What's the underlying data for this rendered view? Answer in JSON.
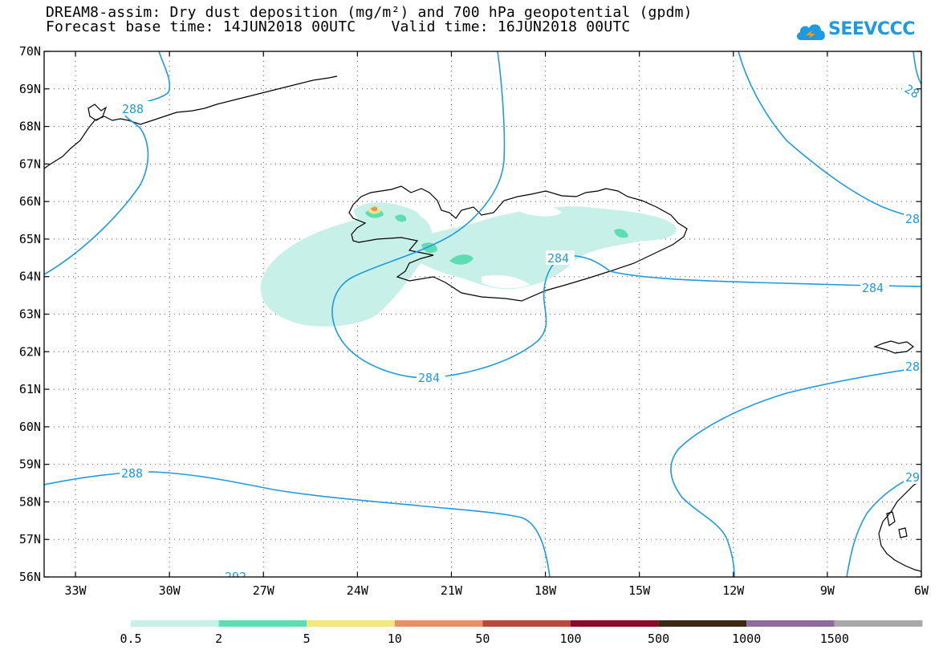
{
  "title_line1": "DREAM8-assim: Dry dust deposition (mg/m²) and 700 hPa geopotential (gpdm)",
  "title_line2": "Forecast base time: 14JUN2018 00UTC    Valid time: 16JUN2018 00UTC",
  "logo_text": "SEEVCCC",
  "map": {
    "lon_ticks": [
      "33W",
      "30W",
      "27W",
      "24W",
      "21W",
      "18W",
      "15W",
      "12W",
      "9W",
      "6W"
    ],
    "lat_ticks": [
      "70N",
      "69N",
      "68N",
      "67N",
      "66N",
      "65N",
      "64N",
      "63N",
      "62N",
      "61N",
      "60N",
      "59N",
      "58N",
      "57N",
      "56N"
    ],
    "lon_range": [
      -34,
      -6
    ],
    "lat_range": [
      56,
      70
    ],
    "grid": "dotted",
    "contour_labels": [
      "288",
      "288",
      "284",
      "284",
      "284",
      "284",
      "288",
      "292",
      "28",
      "28",
      "28",
      "29"
    ],
    "contour_color": "#1e9be0"
  },
  "legend": {
    "colors": [
      "#c6f0e8",
      "#5fddb2",
      "#f4e77e",
      "#e88f6a",
      "#b54a3a",
      "#8b0a2a",
      "#3a2a14",
      "#8f6a9e",
      "#a9a9a9"
    ],
    "labels": [
      "0.5",
      "2",
      "5",
      "10",
      "50",
      "100",
      "500",
      "1000",
      "1500"
    ]
  }
}
